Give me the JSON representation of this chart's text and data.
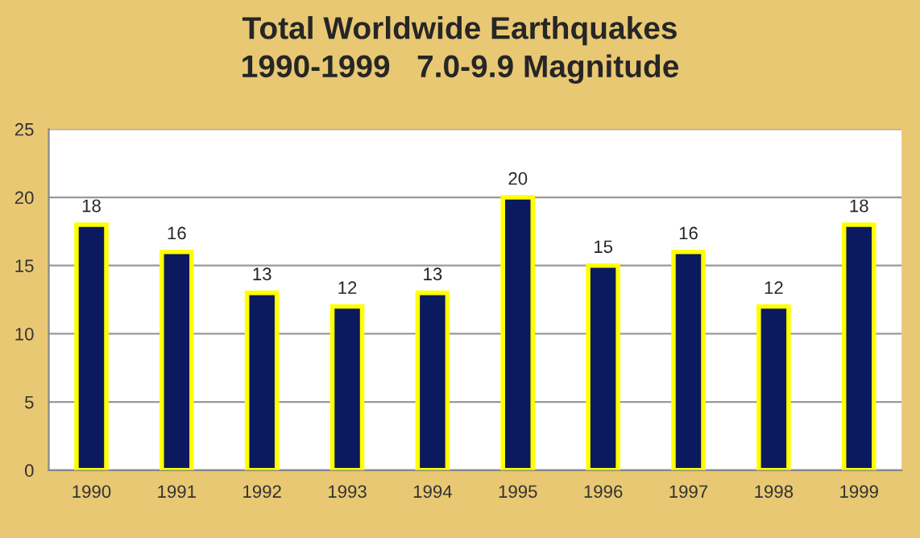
{
  "chart_data": {
    "type": "bar",
    "title": "Total Worldwide Earthquakes\n1990-1999   7.0-9.9 Magnitude",
    "categories": [
      "1990",
      "1991",
      "1992",
      "1993",
      "1994",
      "1995",
      "1996",
      "1997",
      "1998",
      "1999"
    ],
    "values": [
      18,
      16,
      13,
      12,
      13,
      20,
      15,
      16,
      12,
      18
    ],
    "color": "#0b1a5e",
    "ylim": [
      0,
      25
    ],
    "yticks": [
      0,
      5,
      10,
      15,
      20,
      25
    ],
    "grid": "y",
    "data_labels": true
  }
}
